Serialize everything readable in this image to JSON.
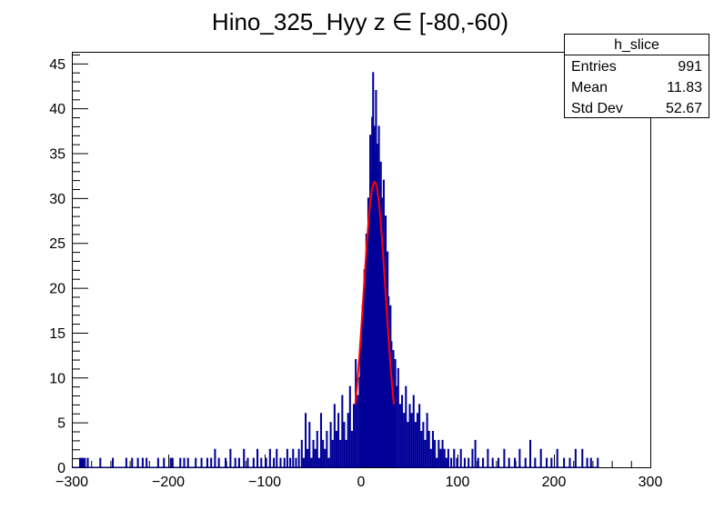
{
  "chart_data": {
    "type": "histogram",
    "title": "Hino_325_Hyy z  ∈ [-80,-60)",
    "xlabel": "",
    "ylabel": "",
    "xlim": [
      -300,
      300
    ],
    "ylim": [
      0,
      46.3
    ],
    "x_ticks": [
      -300,
      -200,
      -100,
      0,
      100,
      200,
      300
    ],
    "y_ticks": [
      0,
      5,
      10,
      15,
      20,
      25,
      30,
      35,
      40,
      45
    ],
    "grid": false,
    "colors": {
      "histogram": "#000099",
      "fit": "#ff0000"
    },
    "stats_box": {
      "name": "h_slice",
      "rows": [
        {
          "label": "Entries",
          "value": "991"
        },
        {
          "label": "Mean",
          "value": "11.83"
        },
        {
          "label": "Std Dev",
          "value": "52.67"
        }
      ]
    },
    "bin_width": 1,
    "bins": [
      [
        -292,
        1
      ],
      [
        -291,
        1
      ],
      [
        -290,
        1
      ],
      [
        -289,
        1
      ],
      [
        -287,
        1
      ],
      [
        -284,
        1
      ],
      [
        -271,
        1
      ],
      [
        -258,
        1
      ],
      [
        -244,
        1
      ],
      [
        -238,
        1
      ],
      [
        -232,
        1
      ],
      [
        -227,
        1
      ],
      [
        -223,
        1
      ],
      [
        -211,
        1
      ],
      [
        -205,
        1
      ],
      [
        -198,
        1
      ],
      [
        -196,
        1
      ],
      [
        -188,
        1
      ],
      [
        -184,
        1
      ],
      [
        -180,
        1
      ],
      [
        -172,
        1
      ],
      [
        -166,
        1
      ],
      [
        -160,
        1
      ],
      [
        -156,
        1
      ],
      [
        -152,
        2
      ],
      [
        -148,
        1
      ],
      [
        -141,
        1
      ],
      [
        -136,
        2
      ],
      [
        -131,
        1
      ],
      [
        -127,
        1
      ],
      [
        -122,
        2
      ],
      [
        -118,
        1
      ],
      [
        -112,
        1
      ],
      [
        -108,
        2
      ],
      [
        -104,
        1
      ],
      [
        -99,
        1
      ],
      [
        -95,
        2
      ],
      [
        -91,
        1
      ],
      [
        -88,
        2
      ],
      [
        -84,
        1
      ],
      [
        -80,
        1
      ],
      [
        -77,
        2
      ],
      [
        -74,
        1
      ],
      [
        -71,
        2
      ],
      [
        -68,
        1
      ],
      [
        -65,
        2
      ],
      [
        -62,
        3
      ],
      [
        -60,
        1
      ],
      [
        -58,
        6
      ],
      [
        -56,
        2
      ],
      [
        -54,
        5
      ],
      [
        -52,
        1
      ],
      [
        -50,
        3
      ],
      [
        -48,
        2
      ],
      [
        -46,
        4
      ],
      [
        -44,
        1
      ],
      [
        -42,
        6
      ],
      [
        -40,
        3
      ],
      [
        -38,
        2
      ],
      [
        -36,
        4
      ],
      [
        -34,
        1
      ],
      [
        -32,
        5
      ],
      [
        -30,
        3
      ],
      [
        -28,
        7
      ],
      [
        -26,
        4
      ],
      [
        -24,
        6
      ],
      [
        -22,
        3
      ],
      [
        -20,
        8
      ],
      [
        -18,
        5
      ],
      [
        -16,
        3
      ],
      [
        -14,
        6
      ],
      [
        -12,
        9
      ],
      [
        -10,
        4
      ],
      [
        -8,
        7
      ],
      [
        -6,
        12
      ],
      [
        -4,
        8
      ],
      [
        -2,
        10
      ],
      [
        -1,
        14
      ],
      [
        0,
        13
      ],
      [
        1,
        18
      ],
      [
        2,
        15
      ],
      [
        3,
        22
      ],
      [
        4,
        20
      ],
      [
        5,
        26
      ],
      [
        6,
        24
      ],
      [
        7,
        30
      ],
      [
        8,
        28
      ],
      [
        9,
        37
      ],
      [
        10,
        33
      ],
      [
        11,
        39
      ],
      [
        12,
        44
      ],
      [
        13,
        38
      ],
      [
        14,
        35
      ],
      [
        15,
        42
      ],
      [
        16,
        36
      ],
      [
        17,
        33
      ],
      [
        18,
        38
      ],
      [
        19,
        31
      ],
      [
        20,
        34
      ],
      [
        21,
        30
      ],
      [
        22,
        27
      ],
      [
        23,
        32
      ],
      [
        24,
        25
      ],
      [
        25,
        28
      ],
      [
        26,
        22
      ],
      [
        27,
        24
      ],
      [
        28,
        19
      ],
      [
        29,
        16
      ],
      [
        30,
        18
      ],
      [
        31,
        14
      ],
      [
        32,
        11
      ],
      [
        33,
        13
      ],
      [
        34,
        10
      ],
      [
        35,
        12
      ],
      [
        36,
        9
      ],
      [
        38,
        11
      ],
      [
        40,
        7
      ],
      [
        42,
        8
      ],
      [
        44,
        6
      ],
      [
        46,
        9
      ],
      [
        48,
        5
      ],
      [
        50,
        7
      ],
      [
        52,
        6
      ],
      [
        54,
        8
      ],
      [
        56,
        5
      ],
      [
        58,
        6
      ],
      [
        60,
        7
      ],
      [
        62,
        4
      ],
      [
        64,
        5
      ],
      [
        66,
        3
      ],
      [
        68,
        6
      ],
      [
        70,
        4
      ],
      [
        72,
        2
      ],
      [
        74,
        4
      ],
      [
        76,
        3
      ],
      [
        78,
        1
      ],
      [
        80,
        3
      ],
      [
        82,
        2
      ],
      [
        84,
        3
      ],
      [
        86,
        2
      ],
      [
        88,
        1
      ],
      [
        90,
        2
      ],
      [
        93,
        1
      ],
      [
        96,
        2
      ],
      [
        99,
        1
      ],
      [
        103,
        2
      ],
      [
        107,
        1
      ],
      [
        111,
        1
      ],
      [
        115,
        2
      ],
      [
        118,
        3
      ],
      [
        121,
        1
      ],
      [
        126,
        1
      ],
      [
        131,
        2
      ],
      [
        136,
        1
      ],
      [
        142,
        1
      ],
      [
        148,
        2
      ],
      [
        153,
        1
      ],
      [
        159,
        1
      ],
      [
        164,
        2
      ],
      [
        170,
        1
      ],
      [
        175,
        3
      ],
      [
        180,
        1
      ],
      [
        186,
        2
      ],
      [
        192,
        1
      ],
      [
        197,
        1
      ],
      [
        203,
        2
      ],
      [
        210,
        1
      ],
      [
        216,
        1
      ],
      [
        222,
        2
      ],
      [
        229,
        2
      ],
      [
        234,
        1
      ],
      [
        238,
        1
      ],
      [
        245,
        1
      ]
    ],
    "fit": {
      "type": "gaussian",
      "amplitude": 31.8,
      "mean": 14,
      "sigma": 11.5,
      "range": [
        -6,
        34
      ]
    }
  }
}
